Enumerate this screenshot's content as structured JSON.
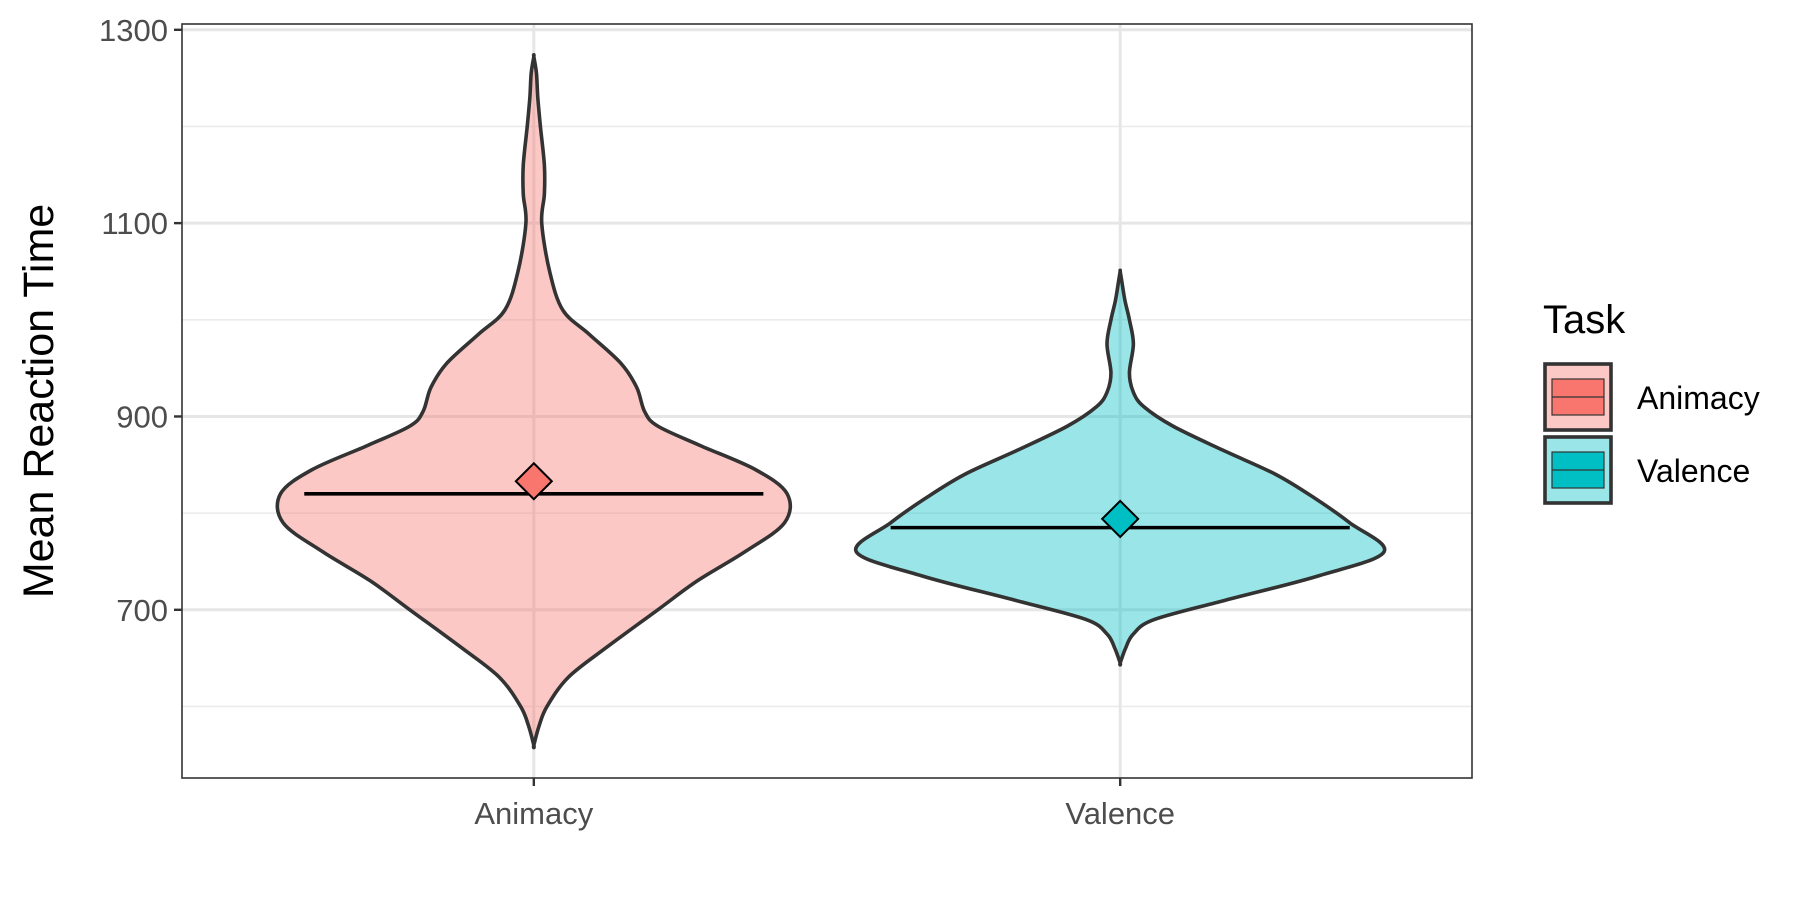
{
  "chart_data": {
    "type": "violin",
    "title": "",
    "xlabel": "",
    "ylabel": "Mean Reaction Time",
    "ylim": [
      526,
      1306
    ],
    "yticks": [
      700,
      900,
      1100,
      1300
    ],
    "y_minor_ticks": [
      600,
      800,
      1000,
      1200
    ],
    "categories": [
      "Animacy",
      "Valence"
    ],
    "grid": true,
    "legend": {
      "title": "Task",
      "position": "right",
      "entries": [
        "Animacy",
        "Valence"
      ]
    },
    "series": [
      {
        "name": "Animacy",
        "color": "#F8766D",
        "fill_color": "#F8766D",
        "fill_alpha": 0.4,
        "min": 560,
        "max": 1272,
        "median": 820,
        "mean": 833,
        "density_profile": [
          [
            560,
            0.0
          ],
          [
            580,
            0.02
          ],
          [
            600,
            0.05
          ],
          [
            630,
            0.13
          ],
          [
            660,
            0.27
          ],
          [
            700,
            0.47
          ],
          [
            730,
            0.62
          ],
          [
            760,
            0.8
          ],
          [
            790,
            0.95
          ],
          [
            820,
            0.96
          ],
          [
            845,
            0.84
          ],
          [
            870,
            0.63
          ],
          [
            890,
            0.47
          ],
          [
            905,
            0.42
          ],
          [
            930,
            0.39
          ],
          [
            955,
            0.33
          ],
          [
            985,
            0.21
          ],
          [
            1010,
            0.11
          ],
          [
            1050,
            0.06
          ],
          [
            1100,
            0.03
          ],
          [
            1130,
            0.04
          ],
          [
            1160,
            0.04
          ],
          [
            1200,
            0.025
          ],
          [
            1230,
            0.015
          ],
          [
            1255,
            0.01
          ],
          [
            1272,
            0.0
          ]
        ]
      },
      {
        "name": "Valence",
        "color": "#00BFC4",
        "fill_color": "#00BFC4",
        "fill_alpha": 0.4,
        "min": 645,
        "max": 1050,
        "median": 785,
        "mean": 794,
        "density_profile": [
          [
            645,
            0.0
          ],
          [
            660,
            0.02
          ],
          [
            675,
            0.05
          ],
          [
            690,
            0.13
          ],
          [
            710,
            0.4
          ],
          [
            735,
            0.75
          ],
          [
            760,
            1.0
          ],
          [
            790,
            0.87
          ],
          [
            815,
            0.74
          ],
          [
            840,
            0.59
          ],
          [
            865,
            0.39
          ],
          [
            890,
            0.2
          ],
          [
            910,
            0.09
          ],
          [
            925,
            0.05
          ],
          [
            945,
            0.035
          ],
          [
            975,
            0.05
          ],
          [
            1000,
            0.035
          ],
          [
            1020,
            0.018
          ],
          [
            1040,
            0.006
          ],
          [
            1050,
            0.0
          ]
        ]
      }
    ]
  }
}
